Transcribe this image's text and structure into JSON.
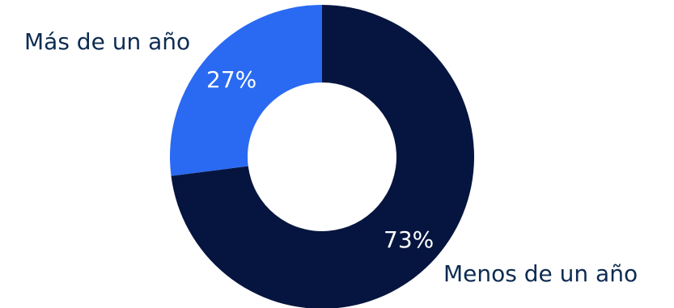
{
  "chart_data": {
    "type": "pie",
    "donut": true,
    "categories": [
      "Menos de un año",
      "Más de un año"
    ],
    "values": [
      73,
      27
    ],
    "value_labels": [
      "73%",
      "27%"
    ],
    "colors": [
      "#06153f",
      "#2a6af2"
    ],
    "title": "",
    "legend": "none"
  }
}
